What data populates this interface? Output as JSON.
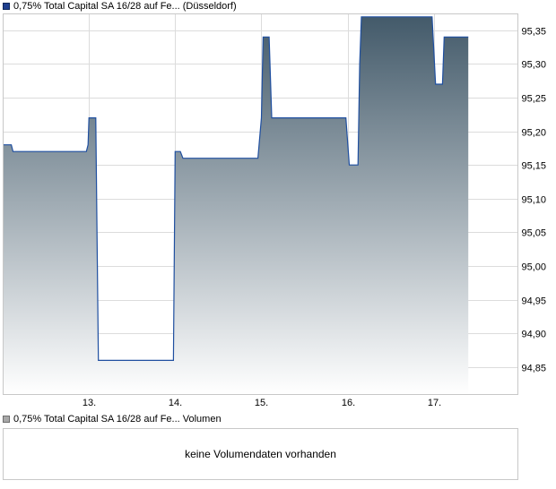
{
  "price_legend": {
    "label": "0,75% Total Capital SA 16/28 auf Fe... (Düsseldorf)",
    "color": "#1f3f8f"
  },
  "volume_legend": {
    "label": "0,75% Total Capital SA 16/28 auf Fe... Volumen",
    "color": "#a8a8a8"
  },
  "volume_panel": {
    "message": "keine Volumendaten vorhanden"
  },
  "chart_data": {
    "type": "area",
    "x_tick_labels": [
      "13.",
      "14.",
      "15.",
      "16.",
      "17."
    ],
    "y_tick_labels": [
      "94,85",
      "94,90",
      "94,95",
      "95,00",
      "95,05",
      "95,10",
      "95,15",
      "95,20",
      "95,25",
      "95,30",
      "95,35"
    ],
    "ylim": [
      94.81,
      95.375
    ],
    "xlim": [
      12.0,
      17.98
    ],
    "y_ticks": [
      94.85,
      94.9,
      94.95,
      95.0,
      95.05,
      95.1,
      95.15,
      95.2,
      95.25,
      95.3,
      95.35
    ],
    "x_ticks": [
      13,
      14,
      15,
      16,
      17
    ],
    "grid": true,
    "line_color": "#1f4fa0",
    "fill_top_color": "#435a6a",
    "fill_bottom_color": "#ffffff",
    "series": [
      {
        "values": [
          [
            12.0,
            95.18
          ],
          [
            12.1,
            95.18
          ],
          [
            12.12,
            95.17
          ],
          [
            12.97,
            95.17
          ],
          [
            12.99,
            95.18
          ],
          [
            13.0,
            95.22
          ],
          [
            13.08,
            95.22
          ],
          [
            13.11,
            94.86
          ],
          [
            13.98,
            94.86
          ],
          [
            14.0,
            95.17
          ],
          [
            14.06,
            95.17
          ],
          [
            14.09,
            95.16
          ],
          [
            14.96,
            95.16
          ],
          [
            15.0,
            95.22
          ],
          [
            15.02,
            95.34
          ],
          [
            15.09,
            95.34
          ],
          [
            15.12,
            95.22
          ],
          [
            15.98,
            95.22
          ],
          [
            16.02,
            95.15
          ],
          [
            16.12,
            95.15
          ],
          [
            16.14,
            95.3
          ],
          [
            16.16,
            95.37
          ],
          [
            16.98,
            95.37
          ],
          [
            17.02,
            95.27
          ],
          [
            17.1,
            95.27
          ],
          [
            17.12,
            95.34
          ],
          [
            17.4,
            95.34
          ]
        ]
      }
    ]
  }
}
